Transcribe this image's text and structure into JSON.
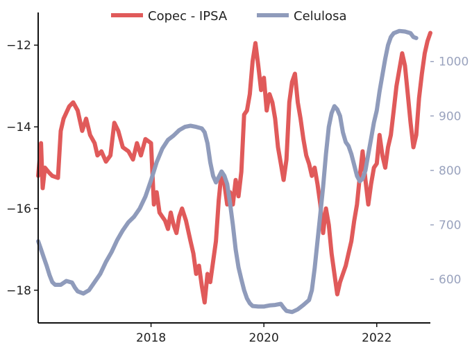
{
  "chart_data": {
    "type": "line",
    "title": "",
    "xlabel": "",
    "ylabel_left": "",
    "ylabel_right": "",
    "x_range": [
      2016.0,
      2022.95
    ],
    "x_ticks": [
      2018,
      2020,
      2022
    ],
    "y_left": {
      "range": [
        -18.8,
        -11.2
      ],
      "ticks": [
        -18,
        -16,
        -14,
        -12
      ]
    },
    "y_right": {
      "range": [
        520,
        1090
      ],
      "ticks": [
        600,
        700,
        800,
        900,
        1000
      ]
    },
    "legend": {
      "position": "top-center"
    },
    "grid": false,
    "colors": {
      "copec": "#e05a5a",
      "celulosa": "#8f9bbb"
    },
    "series": [
      {
        "name": "Copec - IPSA",
        "axis": "left",
        "color": "#e05a5a",
        "points": [
          [
            2016.0,
            -15.2
          ],
          [
            2016.05,
            -14.4
          ],
          [
            2016.08,
            -15.5
          ],
          [
            2016.12,
            -15.0
          ],
          [
            2016.18,
            -15.1
          ],
          [
            2016.25,
            -15.2
          ],
          [
            2016.35,
            -15.25
          ],
          [
            2016.4,
            -14.1
          ],
          [
            2016.45,
            -13.8
          ],
          [
            2016.55,
            -13.5
          ],
          [
            2016.62,
            -13.4
          ],
          [
            2016.7,
            -13.6
          ],
          [
            2016.78,
            -14.1
          ],
          [
            2016.85,
            -13.8
          ],
          [
            2016.92,
            -14.2
          ],
          [
            2017.0,
            -14.4
          ],
          [
            2017.05,
            -14.7
          ],
          [
            2017.12,
            -14.6
          ],
          [
            2017.2,
            -14.85
          ],
          [
            2017.28,
            -14.7
          ],
          [
            2017.35,
            -13.9
          ],
          [
            2017.42,
            -14.1
          ],
          [
            2017.5,
            -14.5
          ],
          [
            2017.6,
            -14.6
          ],
          [
            2017.68,
            -14.8
          ],
          [
            2017.75,
            -14.4
          ],
          [
            2017.82,
            -14.7
          ],
          [
            2017.9,
            -14.3
          ],
          [
            2018.0,
            -14.4
          ],
          [
            2018.05,
            -15.9
          ],
          [
            2018.1,
            -15.6
          ],
          [
            2018.15,
            -16.1
          ],
          [
            2018.2,
            -16.2
          ],
          [
            2018.25,
            -16.3
          ],
          [
            2018.3,
            -16.5
          ],
          [
            2018.35,
            -16.1
          ],
          [
            2018.4,
            -16.4
          ],
          [
            2018.45,
            -16.6
          ],
          [
            2018.5,
            -16.2
          ],
          [
            2018.55,
            -16.0
          ],
          [
            2018.62,
            -16.3
          ],
          [
            2018.7,
            -16.8
          ],
          [
            2018.75,
            -17.1
          ],
          [
            2018.8,
            -17.6
          ],
          [
            2018.85,
            -17.4
          ],
          [
            2018.9,
            -17.9
          ],
          [
            2018.95,
            -18.3
          ],
          [
            2019.0,
            -17.6
          ],
          [
            2019.05,
            -17.8
          ],
          [
            2019.1,
            -17.3
          ],
          [
            2019.15,
            -16.8
          ],
          [
            2019.2,
            -15.8
          ],
          [
            2019.25,
            -15.1
          ],
          [
            2019.3,
            -15.4
          ],
          [
            2019.35,
            -15.9
          ],
          [
            2019.4,
            -15.6
          ],
          [
            2019.45,
            -15.9
          ],
          [
            2019.5,
            -15.3
          ],
          [
            2019.55,
            -15.7
          ],
          [
            2019.6,
            -15.1
          ],
          [
            2019.65,
            -13.7
          ],
          [
            2019.7,
            -13.6
          ],
          [
            2019.75,
            -13.2
          ],
          [
            2019.8,
            -12.4
          ],
          [
            2019.85,
            -11.95
          ],
          [
            2019.9,
            -12.5
          ],
          [
            2019.95,
            -13.1
          ],
          [
            2020.0,
            -12.8
          ],
          [
            2020.05,
            -13.6
          ],
          [
            2020.1,
            -13.2
          ],
          [
            2020.15,
            -13.4
          ],
          [
            2020.2,
            -13.8
          ],
          [
            2020.25,
            -14.5
          ],
          [
            2020.3,
            -14.9
          ],
          [
            2020.35,
            -15.3
          ],
          [
            2020.4,
            -14.8
          ],
          [
            2020.45,
            -13.4
          ],
          [
            2020.5,
            -12.9
          ],
          [
            2020.55,
            -12.7
          ],
          [
            2020.6,
            -13.4
          ],
          [
            2020.65,
            -13.8
          ],
          [
            2020.7,
            -14.3
          ],
          [
            2020.75,
            -14.7
          ],
          [
            2020.8,
            -14.9
          ],
          [
            2020.85,
            -15.2
          ],
          [
            2020.9,
            -15.0
          ],
          [
            2020.95,
            -15.4
          ],
          [
            2021.0,
            -15.9
          ],
          [
            2021.05,
            -16.6
          ],
          [
            2021.1,
            -16.0
          ],
          [
            2021.15,
            -16.4
          ],
          [
            2021.2,
            -17.1
          ],
          [
            2021.25,
            -17.6
          ],
          [
            2021.3,
            -18.1
          ],
          [
            2021.35,
            -17.8
          ],
          [
            2021.4,
            -17.6
          ],
          [
            2021.45,
            -17.4
          ],
          [
            2021.5,
            -17.1
          ],
          [
            2021.55,
            -16.8
          ],
          [
            2021.6,
            -16.3
          ],
          [
            2021.65,
            -15.9
          ],
          [
            2021.7,
            -15.2
          ],
          [
            2021.75,
            -14.6
          ],
          [
            2021.8,
            -15.3
          ],
          [
            2021.85,
            -15.9
          ],
          [
            2021.9,
            -15.4
          ],
          [
            2021.95,
            -15.0
          ],
          [
            2022.0,
            -14.9
          ],
          [
            2022.05,
            -14.2
          ],
          [
            2022.1,
            -14.7
          ],
          [
            2022.15,
            -15.0
          ],
          [
            2022.2,
            -14.5
          ],
          [
            2022.25,
            -14.2
          ],
          [
            2022.3,
            -13.6
          ],
          [
            2022.35,
            -13.0
          ],
          [
            2022.4,
            -12.6
          ],
          [
            2022.45,
            -12.2
          ],
          [
            2022.5,
            -12.5
          ],
          [
            2022.55,
            -13.2
          ],
          [
            2022.6,
            -13.9
          ],
          [
            2022.65,
            -14.5
          ],
          [
            2022.7,
            -14.2
          ],
          [
            2022.75,
            -13.3
          ],
          [
            2022.8,
            -12.7
          ],
          [
            2022.85,
            -12.2
          ],
          [
            2022.9,
            -11.9
          ],
          [
            2022.95,
            -11.7
          ]
        ]
      },
      {
        "name": "Celulosa",
        "axis": "right",
        "color": "#8f9bbb",
        "points": [
          [
            2016.0,
            670
          ],
          [
            2016.05,
            655
          ],
          [
            2016.1,
            640
          ],
          [
            2016.15,
            625
          ],
          [
            2016.2,
            608
          ],
          [
            2016.25,
            595
          ],
          [
            2016.3,
            590
          ],
          [
            2016.4,
            590
          ],
          [
            2016.5,
            597
          ],
          [
            2016.6,
            594
          ],
          [
            2016.65,
            585
          ],
          [
            2016.7,
            578
          ],
          [
            2016.8,
            574
          ],
          [
            2016.9,
            580
          ],
          [
            2017.0,
            595
          ],
          [
            2017.1,
            610
          ],
          [
            2017.2,
            632
          ],
          [
            2017.3,
            650
          ],
          [
            2017.4,
            672
          ],
          [
            2017.5,
            690
          ],
          [
            2017.6,
            705
          ],
          [
            2017.7,
            715
          ],
          [
            2017.8,
            730
          ],
          [
            2017.9,
            752
          ],
          [
            2018.0,
            782
          ],
          [
            2018.1,
            815
          ],
          [
            2018.2,
            840
          ],
          [
            2018.3,
            856
          ],
          [
            2018.4,
            864
          ],
          [
            2018.5,
            874
          ],
          [
            2018.6,
            880
          ],
          [
            2018.7,
            882
          ],
          [
            2018.8,
            880
          ],
          [
            2018.9,
            877
          ],
          [
            2018.95,
            870
          ],
          [
            2019.0,
            850
          ],
          [
            2019.05,
            815
          ],
          [
            2019.1,
            790
          ],
          [
            2019.15,
            778
          ],
          [
            2019.2,
            788
          ],
          [
            2019.25,
            798
          ],
          [
            2019.3,
            790
          ],
          [
            2019.35,
            775
          ],
          [
            2019.4,
            740
          ],
          [
            2019.45,
            700
          ],
          [
            2019.5,
            655
          ],
          [
            2019.55,
            622
          ],
          [
            2019.6,
            600
          ],
          [
            2019.65,
            580
          ],
          [
            2019.7,
            565
          ],
          [
            2019.75,
            556
          ],
          [
            2019.8,
            551
          ],
          [
            2019.9,
            550
          ],
          [
            2020.0,
            550
          ],
          [
            2020.1,
            552
          ],
          [
            2020.2,
            553
          ],
          [
            2020.3,
            555
          ],
          [
            2020.35,
            548
          ],
          [
            2020.4,
            542
          ],
          [
            2020.5,
            540
          ],
          [
            2020.6,
            545
          ],
          [
            2020.7,
            553
          ],
          [
            2020.8,
            562
          ],
          [
            2020.85,
            580
          ],
          [
            2020.9,
            620
          ],
          [
            2020.95,
            670
          ],
          [
            2021.0,
            720
          ],
          [
            2021.05,
            770
          ],
          [
            2021.1,
            830
          ],
          [
            2021.15,
            880
          ],
          [
            2021.2,
            905
          ],
          [
            2021.25,
            918
          ],
          [
            2021.3,
            912
          ],
          [
            2021.35,
            900
          ],
          [
            2021.4,
            870
          ],
          [
            2021.45,
            852
          ],
          [
            2021.5,
            845
          ],
          [
            2021.55,
            830
          ],
          [
            2021.6,
            810
          ],
          [
            2021.65,
            790
          ],
          [
            2021.7,
            780
          ],
          [
            2021.75,
            785
          ],
          [
            2021.8,
            800
          ],
          [
            2021.85,
            830
          ],
          [
            2021.9,
            858
          ],
          [
            2021.95,
            888
          ],
          [
            2022.0,
            910
          ],
          [
            2022.05,
            945
          ],
          [
            2022.1,
            975
          ],
          [
            2022.15,
            1005
          ],
          [
            2022.2,
            1030
          ],
          [
            2022.25,
            1045
          ],
          [
            2022.3,
            1052
          ],
          [
            2022.4,
            1056
          ],
          [
            2022.5,
            1055
          ],
          [
            2022.6,
            1052
          ],
          [
            2022.65,
            1045
          ],
          [
            2022.7,
            1043
          ]
        ]
      }
    ]
  }
}
